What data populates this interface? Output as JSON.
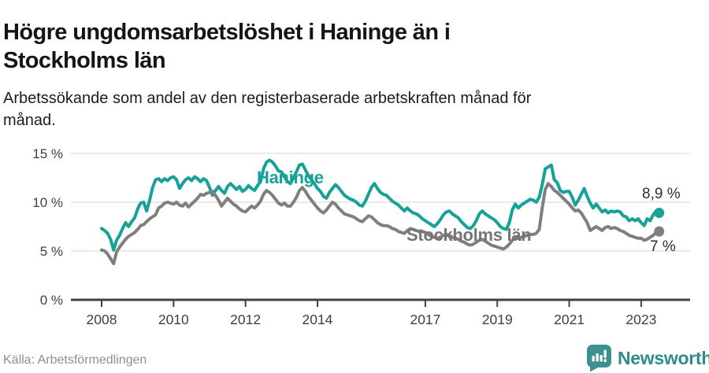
{
  "header": {
    "title": "Högre ungdomsarbetslöshet i Haninge än i Stockholms län",
    "subtitle": "Arbetssökande som andel av den registerbaserade arbetskraften månad för månad."
  },
  "footer": {
    "source": "Källa: Arbetsförmedlingen",
    "brand_name": "Newsworthy",
    "brand_icon": "newsworthy-chart-bubble-icon"
  },
  "colors": {
    "haninge_line": "#17a297",
    "stockholm_line": "#7f7f7f",
    "axis": "#404040",
    "grid": "#e2e2e2",
    "tick_text": "#3f3f3f",
    "end_label_text": "#2e2e2e",
    "brand_teal": "#3a918f"
  },
  "chart_data": {
    "type": "line",
    "title": "Högre ungdomsarbetslöshet i Haninge än i Stockholms län",
    "xlabel": "",
    "ylabel": "",
    "x_start": "2008-01",
    "x_end": "2023-07",
    "x_frequency": "monthly",
    "x_ticks": [
      2008,
      2010,
      2012,
      2014,
      2017,
      2019,
      2021,
      2023
    ],
    "y_ticks": [
      0,
      5,
      10,
      15
    ],
    "y_tick_suffix": " %",
    "ylim": [
      0,
      16.6
    ],
    "grid": "horizontal",
    "legend_position": "inline-labels",
    "series": [
      {
        "name": "Haninge",
        "color": "#17a297",
        "end_label": "8,9 %",
        "last_value": 8.9,
        "values": [
          7.3,
          7.1,
          6.8,
          6.2,
          5.1,
          6.1,
          6.6,
          7.3,
          7.9,
          7.5,
          8.0,
          8.4,
          9.3,
          9.9,
          10.0,
          9.1,
          10.2,
          11.5,
          12.3,
          12.4,
          12.1,
          12.4,
          12.2,
          12.5,
          12.6,
          12.3,
          11.4,
          11.9,
          12.3,
          12.5,
          12.2,
          12.6,
          12.4,
          12.1,
          12.4,
          12.2,
          11.5,
          10.7,
          11.2,
          11.6,
          11.2,
          10.9,
          11.6,
          11.9,
          11.6,
          11.3,
          11.6,
          11.1,
          11.3,
          11.7,
          11.4,
          11.2,
          11.7,
          12.1,
          13.4,
          14.1,
          14.3,
          14.1,
          13.7,
          13.2,
          13.1,
          12.6,
          12.1,
          11.9,
          12.5,
          13.1,
          13.8,
          13.9,
          13.3,
          12.7,
          12.3,
          11.9,
          11.4,
          11.1,
          10.6,
          10.4,
          11.0,
          11.4,
          11.8,
          11.5,
          11.1,
          10.7,
          10.5,
          10.3,
          10.2,
          10.0,
          9.7,
          9.6,
          10.1,
          10.8,
          11.5,
          11.9,
          11.4,
          11.0,
          10.8,
          10.7,
          10.4,
          10.1,
          9.9,
          9.7,
          9.4,
          9.1,
          9.4,
          9.1,
          8.9,
          8.8,
          8.6,
          8.3,
          8.1,
          7.9,
          7.7,
          7.5,
          7.8,
          8.2,
          8.7,
          9.0,
          9.1,
          8.8,
          8.6,
          8.4,
          8.0,
          7.7,
          7.4,
          7.3,
          7.6,
          8.1,
          8.8,
          9.1,
          8.8,
          8.6,
          8.4,
          8.2,
          7.9,
          7.5,
          7.3,
          7.2,
          7.9,
          9.2,
          9.8,
          9.4,
          9.7,
          9.9,
          10.1,
          10.3,
          10.2,
          10.0,
          10.5,
          11.8,
          13.4,
          13.6,
          13.8,
          12.3,
          12.0,
          11.2,
          11.0,
          11.1,
          11.1,
          10.5,
          9.7,
          10.2,
          10.8,
          11.4,
          10.6,
          9.9,
          9.4,
          9.8,
          9.4,
          9.0,
          9.2,
          8.9,
          9.1,
          9.0,
          9.1,
          9.0,
          8.6,
          8.5,
          8.1,
          8.3,
          8.1,
          8.3,
          7.9,
          7.6,
          8.3,
          8.1,
          8.7,
          9.1,
          8.9
        ]
      },
      {
        "name": "Stockholms län",
        "color": "#7f7f7f",
        "end_label": "7 %",
        "last_value": 7.0,
        "values": [
          5.1,
          5.0,
          4.7,
          4.2,
          3.7,
          4.9,
          5.4,
          5.8,
          6.2,
          6.5,
          6.7,
          6.9,
          7.2,
          7.6,
          7.7,
          8.0,
          8.3,
          8.5,
          8.7,
          9.4,
          9.6,
          9.9,
          10.0,
          9.9,
          9.8,
          10.0,
          9.7,
          9.6,
          9.9,
          9.5,
          9.8,
          10.1,
          10.4,
          10.8,
          10.7,
          10.9,
          11.0,
          11.1,
          10.7,
          10.2,
          9.6,
          10.0,
          10.4,
          10.1,
          9.8,
          9.6,
          9.3,
          9.1,
          9.0,
          9.3,
          9.6,
          9.4,
          9.7,
          10.1,
          10.8,
          11.2,
          11.0,
          10.7,
          10.3,
          9.9,
          9.7,
          9.9,
          9.6,
          9.6,
          10.0,
          10.5,
          11.2,
          11.5,
          11.1,
          10.6,
          10.2,
          9.8,
          9.4,
          9.1,
          8.9,
          9.2,
          9.6,
          10.0,
          9.8,
          9.4,
          9.1,
          8.8,
          8.7,
          8.6,
          8.5,
          8.3,
          8.1,
          8.0,
          8.3,
          8.6,
          8.5,
          8.2,
          7.9,
          7.7,
          7.6,
          7.6,
          7.5,
          7.3,
          7.2,
          7.0,
          6.9,
          6.8,
          7.1,
          7.3,
          7.2,
          7.1,
          7.0,
          7.0,
          6.9,
          6.7,
          6.5,
          6.4,
          6.3,
          6.4,
          6.6,
          6.7,
          6.6,
          6.4,
          6.3,
          6.2,
          6.0,
          5.9,
          5.7,
          5.6,
          5.7,
          5.9,
          6.1,
          6.2,
          6.0,
          5.8,
          5.6,
          5.5,
          5.4,
          5.3,
          5.2,
          5.4,
          5.7,
          6.1,
          6.4,
          6.3,
          6.4,
          6.5,
          6.6,
          6.7,
          6.7,
          6.8,
          7.2,
          9.4,
          11.3,
          11.9,
          11.6,
          11.2,
          11.0,
          10.7,
          10.4,
          10.1,
          9.8,
          9.4,
          9.1,
          9.2,
          8.9,
          8.4,
          7.9,
          7.1,
          7.3,
          7.5,
          7.3,
          7.1,
          7.4,
          7.5,
          7.3,
          7.4,
          7.3,
          7.1,
          7.0,
          6.8,
          6.6,
          6.5,
          6.4,
          6.3,
          6.3,
          6.1,
          6.2,
          6.4,
          6.6,
          6.9,
          7.0
        ]
      }
    ]
  }
}
